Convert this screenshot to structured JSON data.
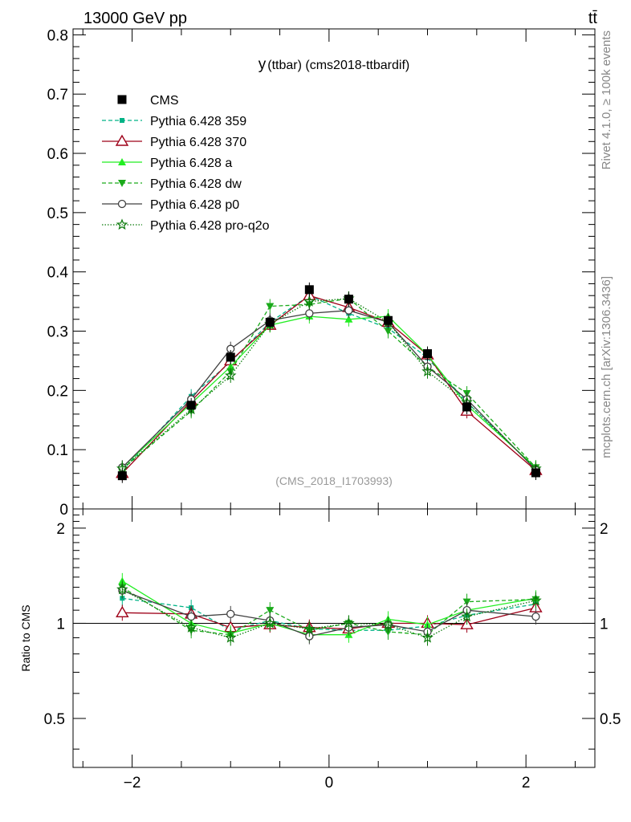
{
  "header": {
    "left": "13000 GeV pp",
    "right": "tt̄"
  },
  "side_labels": {
    "rivet": "Rivet 4.1.0, ≥ 100k events",
    "mcplots": "mcplots.cern.ch [arXiv:1306.3436]"
  },
  "chart_data": [
    {
      "type": "line",
      "panel": "main",
      "title": "y(ttbar) (cms2018-ttbardif)",
      "title_parts": {
        "y": "y",
        "rest": "(ttbar) (cms2018-ttbardif)"
      },
      "watermark": "(CMS_2018_I1703993)",
      "xlabel": "",
      "ylabel": "",
      "xlim": [
        -2.6,
        2.7
      ],
      "ylim": [
        0,
        0.81
      ],
      "yticks": [
        0,
        0.1,
        0.2,
        0.3,
        0.4,
        0.5,
        0.6,
        0.7,
        0.8
      ],
      "ytick_labels": [
        "0",
        "0.1",
        "0.2",
        "0.3",
        "0.4",
        "0.5",
        "0.6",
        "0.7",
        "0.8"
      ],
      "legend_position": "top-left",
      "x": [
        -2.1,
        -1.4,
        -1.0,
        -0.6,
        -0.2,
        0.2,
        0.6,
        1.0,
        1.4,
        2.1
      ],
      "series": [
        {
          "name": "CMS",
          "color": "#000000",
          "marker": "square-filled",
          "line": "none",
          "values": [
            0.056,
            0.175,
            0.256,
            0.315,
            0.37,
            0.354,
            0.318,
            0.262,
            0.172,
            0.061
          ]
        },
        {
          "name": "Pythia 6.428 359",
          "color": "#00b386",
          "marker": "square-small",
          "line": "dashed",
          "values": [
            0.065,
            0.19,
            0.248,
            0.315,
            0.36,
            0.33,
            0.305,
            0.255,
            0.18,
            0.068
          ]
        },
        {
          "name": "Pythia 6.428 370",
          "color": "#9e0018",
          "marker": "triangle-open",
          "line": "solid",
          "values": [
            0.06,
            0.182,
            0.25,
            0.31,
            0.36,
            0.34,
            0.315,
            0.26,
            0.165,
            0.065
          ]
        },
        {
          "name": "Pythia 6.428 a",
          "color": "#22ee22",
          "marker": "triangle-up-filled",
          "line": "solid",
          "values": [
            0.07,
            0.178,
            0.24,
            0.31,
            0.325,
            0.32,
            0.325,
            0.26,
            0.175,
            0.07
          ]
        },
        {
          "name": "Pythia 6.428 dw",
          "color": "#1aaa1a",
          "marker": "triangle-down-filled",
          "line": "dashed",
          "values": [
            0.067,
            0.165,
            0.232,
            0.342,
            0.345,
            0.355,
            0.3,
            0.24,
            0.195,
            0.07
          ]
        },
        {
          "name": "Pythia 6.428 p0",
          "color": "#404040",
          "marker": "circle-open",
          "line": "solid",
          "values": [
            0.07,
            0.185,
            0.27,
            0.318,
            0.33,
            0.335,
            0.315,
            0.24,
            0.185,
            0.066
          ]
        },
        {
          "name": "Pythia 6.428 pro-q2o",
          "color": "#0a7a0a",
          "marker": "star-open",
          "line": "dotted",
          "values": [
            0.068,
            0.168,
            0.225,
            0.312,
            0.35,
            0.355,
            0.315,
            0.232,
            0.18,
            0.068
          ]
        }
      ]
    },
    {
      "type": "line",
      "panel": "ratio",
      "ylabel": "Ratio to CMS",
      "xlim": [
        -2.6,
        2.7
      ],
      "ylim": [
        0.35,
        2.3
      ],
      "y_scale": "log",
      "yticks": [
        0.5,
        1,
        2
      ],
      "ytick_labels": [
        "0.5",
        "1",
        "2"
      ],
      "xticks": [
        -2,
        0,
        2
      ],
      "xtick_labels": [
        "−2",
        "0",
        "2"
      ],
      "x": [
        -2.1,
        -1.4,
        -1.0,
        -0.6,
        -0.2,
        0.2,
        0.6,
        1.0,
        1.4,
        2.1
      ],
      "series": [
        {
          "name": "Pythia 6.428 359",
          "color": "#00b386",
          "values": [
            1.2,
            1.12,
            0.95,
            1.02,
            0.96,
            0.95,
            0.95,
            0.98,
            1.06,
            1.15
          ]
        },
        {
          "name": "Pythia 6.428 370",
          "color": "#9e0018",
          "values": [
            1.08,
            1.07,
            0.97,
            0.99,
            0.97,
            0.96,
            1.0,
            1.0,
            0.99,
            1.12
          ]
        },
        {
          "name": "Pythia 6.428 a",
          "color": "#22ee22",
          "values": [
            1.36,
            1.0,
            0.93,
            1.0,
            0.92,
            0.92,
            1.03,
            0.99,
            1.1,
            1.2
          ]
        },
        {
          "name": "Pythia 6.428 dw",
          "color": "#1aaa1a",
          "values": [
            1.3,
            0.95,
            0.92,
            1.1,
            0.95,
            1.0,
            0.94,
            0.92,
            1.17,
            1.19
          ]
        },
        {
          "name": "Pythia 6.428 p0",
          "color": "#404040",
          "values": [
            1.27,
            1.05,
            1.07,
            1.02,
            0.91,
            0.97,
            0.99,
            0.94,
            1.1,
            1.05
          ]
        },
        {
          "name": "Pythia 6.428 pro-q2o",
          "color": "#0a7a0a",
          "values": [
            1.28,
            0.97,
            0.9,
            1.0,
            0.96,
            1.0,
            0.99,
            0.9,
            1.05,
            1.18
          ]
        }
      ]
    }
  ]
}
